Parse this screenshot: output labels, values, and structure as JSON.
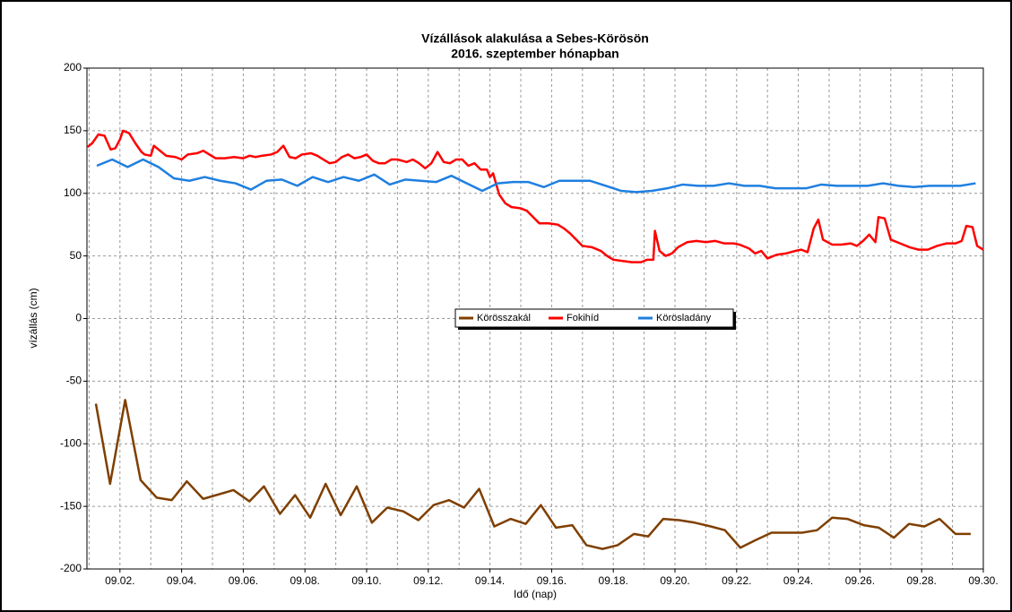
{
  "chart_data": {
    "type": "line",
    "title": [
      "Vízállások alakulása a Sebes-Körösön",
      "2016. szeptember hónapban"
    ],
    "x_label": "Idő (nap)",
    "y_label": "vízállás (cm)",
    "xlim": [
      0.93,
      30
    ],
    "ylim": [
      -200,
      200
    ],
    "xticks": [
      {
        "value": 2,
        "label": "09.02."
      },
      {
        "value": 4,
        "label": "09.04."
      },
      {
        "value": 6,
        "label": "09.06."
      },
      {
        "value": 8,
        "label": "09.08."
      },
      {
        "value": 10,
        "label": "09.10."
      },
      {
        "value": 12,
        "label": "09.12."
      },
      {
        "value": 14,
        "label": "09.14."
      },
      {
        "value": 16,
        "label": "09.16."
      },
      {
        "value": 18,
        "label": "09.18."
      },
      {
        "value": 20,
        "label": "09.20."
      },
      {
        "value": 22,
        "label": "09.22."
      },
      {
        "value": 24,
        "label": "09.24."
      },
      {
        "value": 26,
        "label": "09.26."
      },
      {
        "value": 28,
        "label": "09.28."
      },
      {
        "value": 30,
        "label": "09.30."
      }
    ],
    "xminor_ticks": [
      1,
      3,
      5,
      7,
      9,
      11,
      13,
      15,
      17,
      19,
      21,
      23,
      25,
      27,
      29
    ],
    "yticks": [
      -200,
      -150,
      -100,
      -50,
      0,
      50,
      100,
      150,
      200
    ],
    "grid": true,
    "series": [
      {
        "name": "Körösszakál",
        "color": "#7f3f00",
        "x": [
          1.22,
          1.68,
          2.17,
          2.67,
          3.19,
          3.68,
          4.17,
          4.7,
          5.68,
          6.2,
          6.67,
          7.19,
          7.68,
          8.17,
          8.67,
          9.16,
          9.68,
          10.17,
          10.67,
          11.19,
          11.68,
          12.17,
          12.67,
          13.16,
          13.65,
          14.14,
          14.67,
          15.16,
          15.65,
          16.14,
          16.67,
          17.13,
          17.65,
          18.14,
          18.67,
          19.13,
          19.62,
          20.14,
          20.64,
          21.16,
          21.62,
          22.12,
          22.61,
          23.13,
          23.62,
          24.12,
          24.61,
          25.1,
          25.59,
          26.12,
          26.61,
          27.1,
          27.59,
          28.09,
          28.58,
          29.1,
          29.59
        ],
        "values": [
          -68,
          -132,
          -65,
          -129,
          -143,
          -145,
          -130,
          -144,
          -137,
          -146,
          -134,
          -156,
          -141,
          -159,
          -132,
          -157,
          -134,
          -163,
          -151,
          -154,
          -161,
          -149,
          -145,
          -151,
          -136,
          -166,
          -160,
          -164,
          -149,
          -167,
          -165,
          -181,
          -184,
          -181,
          -172,
          -174,
          -160,
          -161,
          -163,
          -166,
          -169,
          -183,
          -177,
          -171,
          -171,
          -171,
          -169,
          -159,
          -160,
          -165,
          -167,
          -175,
          -164,
          -166,
          -160,
          -172,
          -172
        ]
      },
      {
        "name": "Fokihíd",
        "color": "#ff0000",
        "x": [
          0.95,
          1.1,
          1.3,
          1.5,
          1.7,
          1.85,
          2.0,
          2.1,
          2.3,
          2.5,
          2.7,
          2.8,
          3.0,
          3.1,
          3.3,
          3.5,
          3.8,
          4.0,
          4.2,
          4.5,
          4.7,
          4.9,
          5.1,
          5.4,
          5.7,
          6.0,
          6.2,
          6.4,
          6.6,
          6.9,
          7.1,
          7.3,
          7.5,
          7.7,
          7.9,
          8.2,
          8.4,
          8.6,
          8.8,
          9.0,
          9.2,
          9.4,
          9.6,
          9.8,
          10.0,
          10.2,
          10.4,
          10.6,
          10.8,
          11.0,
          11.3,
          11.5,
          11.7,
          11.9,
          12.1,
          12.3,
          12.5,
          12.7,
          12.9,
          13.1,
          13.3,
          13.5,
          13.7,
          13.9,
          14.0,
          14.1,
          14.3,
          14.5,
          14.7,
          15.0,
          15.2,
          15.4,
          15.6,
          15.9,
          16.2,
          16.4,
          16.6,
          16.8,
          17.0,
          17.3,
          17.6,
          17.8,
          18.0,
          18.3,
          18.6,
          18.9,
          19.1,
          19.3,
          19.35,
          19.5,
          19.7,
          19.9,
          20.1,
          20.4,
          20.7,
          21.0,
          21.3,
          21.6,
          21.9,
          22.1,
          22.4,
          22.6,
          22.8,
          23.0,
          23.3,
          23.6,
          23.9,
          24.1,
          24.3,
          24.5,
          24.65,
          24.8,
          25.1,
          25.4,
          25.7,
          25.9,
          26.1,
          26.3,
          26.5,
          26.6,
          26.8,
          27.0,
          27.3,
          27.6,
          27.9,
          28.2,
          28.5,
          28.8,
          29.1,
          29.3,
          29.45,
          29.65,
          29.8,
          30.0
        ],
        "values": [
          137,
          140,
          147,
          146,
          135,
          136,
          143,
          150,
          148,
          140,
          133,
          131,
          130,
          138,
          134,
          130,
          129,
          127,
          131,
          132,
          134,
          131,
          128,
          128,
          129,
          128,
          130,
          129,
          130,
          131,
          133,
          138,
          129,
          128,
          131,
          132,
          130,
          127,
          124,
          125,
          129,
          131,
          128,
          129,
          131,
          126,
          124,
          124,
          127,
          127,
          125,
          127,
          124,
          120,
          124,
          133,
          125,
          124,
          127,
          127,
          122,
          124,
          119,
          119,
          113,
          116,
          99,
          92,
          89,
          88,
          86,
          81,
          76,
          76,
          75,
          72,
          68,
          63,
          58,
          57,
          54,
          50,
          47,
          46,
          45,
          45,
          47,
          47,
          70,
          54,
          50,
          52,
          57,
          61,
          62,
          61,
          62,
          60,
          60,
          59,
          56,
          52,
          54,
          48,
          51,
          52,
          54,
          55,
          53,
          72,
          79,
          63,
          59,
          59,
          60,
          58,
          62,
          67,
          61,
          81,
          80,
          63,
          60,
          57,
          55,
          55,
          58,
          60,
          60,
          62,
          74,
          73,
          58,
          55
        ]
      },
      {
        "name": "Körösladány",
        "color": "#1f7fe0",
        "x": [
          1.25,
          1.75,
          2.25,
          2.75,
          3.25,
          3.75,
          4.25,
          4.75,
          5.25,
          5.75,
          6.25,
          6.75,
          7.25,
          7.75,
          8.25,
          8.75,
          9.25,
          9.75,
          10.25,
          10.75,
          11.25,
          11.75,
          12.25,
          12.75,
          13.25,
          13.75,
          14.25,
          14.75,
          15.25,
          15.75,
          16.25,
          16.75,
          17.25,
          17.75,
          18.25,
          18.75,
          19.25,
          19.75,
          20.25,
          20.75,
          21.25,
          21.75,
          22.25,
          22.75,
          23.25,
          23.75,
          24.25,
          24.75,
          25.25,
          25.75,
          26.25,
          26.75,
          27.25,
          27.75,
          28.25,
          28.75,
          29.25,
          29.75
        ],
        "values": [
          122,
          127,
          121,
          127,
          121,
          112,
          110,
          113,
          110,
          108,
          103,
          110,
          111,
          106,
          113,
          109,
          113,
          110,
          115,
          107,
          111,
          110,
          109,
          114,
          108,
          102,
          108,
          109,
          109,
          105,
          110,
          110,
          110,
          106,
          102,
          101,
          102,
          104,
          107,
          106,
          106,
          108,
          106,
          106,
          104,
          104,
          104,
          107,
          106,
          106,
          106,
          108,
          106,
          105,
          106,
          106,
          106,
          108
        ]
      }
    ]
  }
}
